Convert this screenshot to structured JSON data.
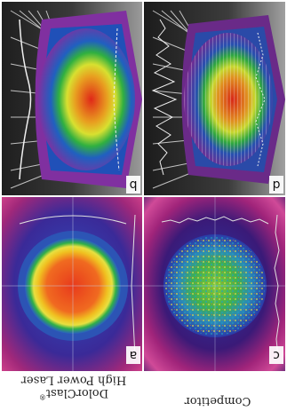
{
  "panels": {
    "a": {
      "label": "a"
    },
    "b": {
      "label": "b"
    },
    "c": {
      "label": "c"
    },
    "d": {
      "label": "d"
    }
  },
  "captions": {
    "product_line1": "High Power Laser",
    "product_name": "DolorClast",
    "product_mark": "®",
    "competitor": "Competitor"
  },
  "colors": {
    "background_magenta": "#b0246e",
    "background_blue": "#1a4aa0",
    "heat_red": "#e83820",
    "heat_yellow": "#e8d030",
    "heat_green": "#3aaa40"
  }
}
